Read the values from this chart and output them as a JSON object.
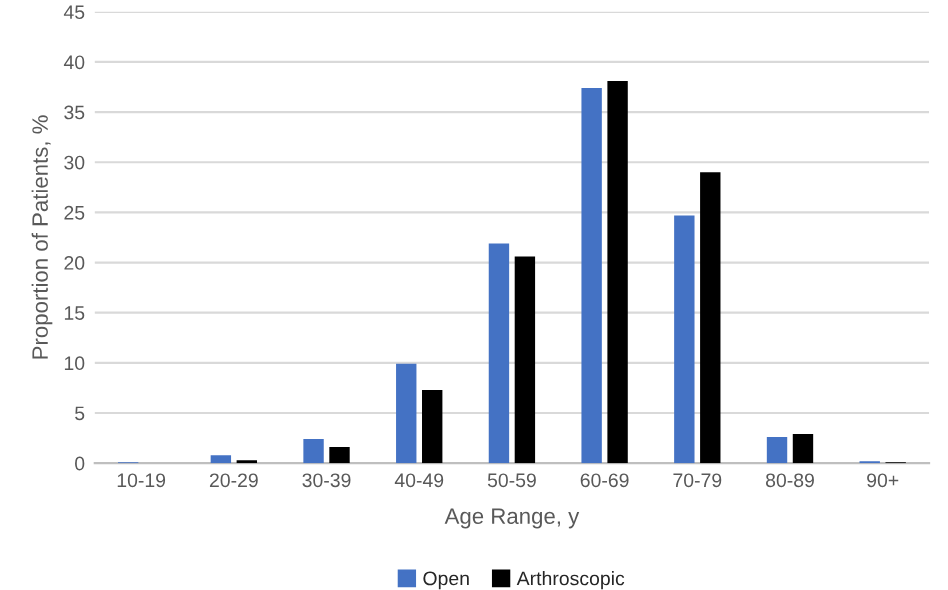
{
  "chart_data": {
    "type": "bar",
    "xlabel": "Age Range, y",
    "ylabel": "Proportion of Patients, %",
    "categories": [
      "10-19",
      "20-29",
      "30-39",
      "40-49",
      "50-59",
      "60-69",
      "70-79",
      "80-89",
      "90+"
    ],
    "series": [
      {
        "name": "Open",
        "color": "#4472c4",
        "values": [
          0.1,
          0.8,
          2.4,
          9.9,
          21.9,
          37.4,
          24.7,
          2.6,
          0.2
        ]
      },
      {
        "name": "Arthroscopic",
        "color": "#000000",
        "values": [
          null,
          0.3,
          1.6,
          7.3,
          20.6,
          38.1,
          29.0,
          2.9,
          0.1
        ]
      }
    ],
    "ylim": [
      0,
      45
    ],
    "yticks": [
      0,
      5,
      10,
      15,
      20,
      25,
      30,
      35,
      40,
      45
    ],
    "grid": "y",
    "legend": "bottom"
  }
}
